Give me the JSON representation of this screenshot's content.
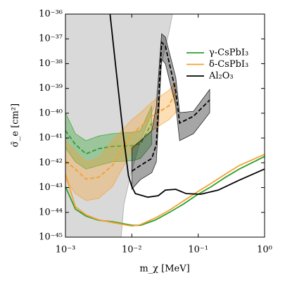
{
  "chart_data": {
    "type": "line",
    "xlabel": "m_χ [MeV]",
    "ylabel": "σ̄_e [cm²]",
    "log_x": true,
    "log_y": true,
    "xlim": [
      0.001,
      1
    ],
    "ylim": [
      1e-45,
      1e-36
    ],
    "xticks": [
      {
        "value": 0.001,
        "label": "10⁻³"
      },
      {
        "value": 0.01,
        "label": "10⁻²"
      },
      {
        "value": 0.1,
        "label": "10⁻¹"
      },
      {
        "value": 1,
        "label": "10⁰"
      }
    ],
    "yticks": [
      {
        "value": 1e-45,
        "label": "10⁻⁴⁵"
      },
      {
        "value": 1e-44,
        "label": "10⁻⁴⁴"
      },
      {
        "value": 1e-43,
        "label": "10⁻⁴³"
      },
      {
        "value": 1e-42,
        "label": "10⁻⁴²"
      },
      {
        "value": 1e-41,
        "label": "10⁻⁴¹"
      },
      {
        "value": 1e-40,
        "label": "10⁻⁴⁰"
      },
      {
        "value": 1e-39,
        "label": "10⁻³⁹"
      },
      {
        "value": 1e-38,
        "label": "10⁻³⁸"
      },
      {
        "value": 1e-37,
        "label": "10⁻³⁷"
      },
      {
        "value": 1e-36,
        "label": "10⁻³⁶"
      }
    ],
    "legend": "upper right",
    "shaded_region": {
      "color": "#d9d9d9",
      "edge_color": "#b5b5b5",
      "x": [
        0.0069,
        0.0076,
        0.0095,
        0.0135,
        0.0222,
        0.0281,
        0.0363,
        0.041
      ],
      "values": [
        1e-45,
        2.1e-44,
        3e-43,
        7.8e-42,
        2e-40,
        1e-38,
        1.9e-37,
        1e-36
      ]
    },
    "series": [
      {
        "name": "γ-CsPbI₃",
        "color": "#2ca02c",
        "x": [
          0.001,
          0.00141,
          0.00204,
          0.00316,
          0.0051,
          0.01,
          0.0135,
          0.0222,
          0.0363,
          0.0589,
          0.0955,
          0.158,
          0.257,
          0.417,
          1
        ],
        "values": [
          1.1e-43,
          1.35e-44,
          7.1e-45,
          4.8e-45,
          4.2e-45,
          3e-45,
          3e-45,
          4.8e-45,
          9.8e-45,
          2.1e-44,
          5e-44,
          1.1e-43,
          2.6e-43,
          5.6e-43,
          1.8e-42
        ],
        "projection": {
          "x": [
            0.001,
            0.00141,
            0.00204,
            0.00316,
            0.0051,
            0.01,
            0.0135,
            0.02
          ],
          "values": [
            2e-41,
            5.5e-42,
            2.3e-42,
            3.7e-42,
            4.6e-42,
            4.9e-42,
            5.9e-42,
            4e-41
          ],
          "upper": [
            1.05e-40,
            1.5e-41,
            7.8e-42,
            1.2e-41,
            1.5e-41,
            1.7e-41,
            2e-41,
            2e-40
          ],
          "lower": [
            4e-42,
            1.1e-42,
            5.6e-43,
            7.8e-43,
            1.1e-42,
            1.2e-42,
            1.5e-42,
            5.5e-42
          ]
        }
      },
      {
        "name": "δ-CsPbI₃",
        "color": "#f5a030",
        "x": [
          0.001,
          0.00141,
          0.00204,
          0.00316,
          0.0051,
          0.01,
          0.0135,
          0.0222,
          0.0363,
          0.0589,
          0.0955,
          0.158,
          0.257,
          0.417,
          1
        ],
        "values": [
          3.5e-43,
          1.7e-44,
          7.9e-45,
          5e-45,
          3.9e-45,
          2.8e-45,
          3.2e-45,
          5.8e-45,
          1.2e-44,
          2.8e-44,
          6.5e-44,
          1.5e-43,
          3.5e-43,
          7.8e-43,
          2.2e-42
        ],
        "projection": {
          "x": [
            0.001,
            0.00141,
            0.00204,
            0.00316,
            0.0051,
            0.01,
            0.0135,
            0.02,
            0.0363,
            0.0459
          ],
          "values": [
            1.2e-42,
            5.6e-43,
            2.2e-43,
            2.6e-43,
            7.8e-43,
            1.5e-41,
            2.8e-41,
            7.6e-41,
            2e-40,
            7.5e-40
          ],
          "upper": [
            7.8e-42,
            2.9e-42,
            1.1e-42,
            1.5e-42,
            7.8e-42,
            5.5e-41,
            1.05e-40,
            2.8e-40,
            8.5e-40,
            1.7e-39
          ],
          "lower": [
            2.1e-43,
            5.7e-44,
            3e-44,
            3.6e-44,
            1.1e-43,
            2.9e-42,
            7.8e-42,
            2e-41,
            5.5e-41,
            1.05e-40
          ]
        }
      },
      {
        "name": "Al₂O₃",
        "color": "#000000",
        "x": [
          0.0047,
          0.0058,
          0.0074,
          0.0089,
          0.01,
          0.0113,
          0.0174,
          0.025,
          0.032,
          0.0459,
          0.066,
          0.109,
          0.2,
          0.417,
          1
        ],
        "values": [
          1e-36,
          5.4e-39,
          1.5e-41,
          3e-43,
          1.1e-43,
          5.7e-44,
          4.1e-44,
          4.7e-44,
          7.9e-44,
          8.5e-44,
          5.7e-44,
          5.4e-44,
          7.9e-44,
          2e-43,
          5.6e-43
        ],
        "projection": {
          "x": [
            0.01,
            0.0135,
            0.02,
            0.0234,
            0.0281,
            0.032,
            0.0459,
            0.0525,
            0.085,
            0.149
          ],
          "values": [
            4.6e-43,
            7.8e-43,
            1.5e-42,
            5.5e-42,
            7.2e-38,
            5.2e-38,
            7.5e-40,
            4e-41,
            7.6e-41,
            3.4e-40
          ],
          "upper": [
            4e-42,
            7.8e-42,
            2e-41,
            2e-40,
            1.6e-37,
            1.2e-37,
            2.8e-39,
            1.05e-40,
            1.2e-40,
            9.1e-40
          ],
          "lower": [
            8.7e-44,
            2.1e-43,
            4e-43,
            1.1e-42,
            1.5e-38,
            1e-38,
            2e-40,
            7.8e-42,
            1.5e-41,
            1.05e-40
          ]
        }
      }
    ]
  }
}
